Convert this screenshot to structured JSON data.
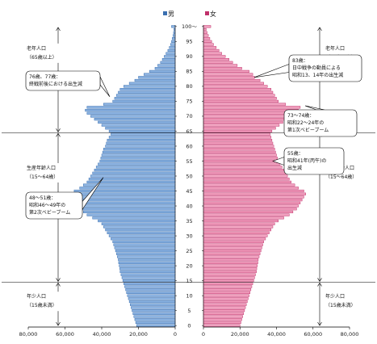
{
  "chart_data": {
    "type": "bar",
    "orientation": "horizontal",
    "layout": "population-pyramid",
    "legend": {
      "male": "男",
      "female": "女",
      "placement": "top-center"
    },
    "colors": {
      "male": "#8db4e2",
      "male_edge": "#3a6fb0",
      "female": "#f2a2c0",
      "female_edge": "#c0306a",
      "divider": "#333333"
    },
    "age_ticks": [
      "0",
      "5",
      "10",
      "15",
      "20",
      "25",
      "30",
      "35",
      "40",
      "45",
      "50",
      "55",
      "60",
      "65",
      "70",
      "75",
      "80",
      "85",
      "90",
      "95",
      "100〜"
    ],
    "x_ticks_male": [
      "80,000",
      "60,000",
      "40,000",
      "20,000",
      "0"
    ],
    "x_ticks_female": [
      "0",
      "20,000",
      "40,000",
      "60,000",
      "80,000"
    ],
    "xlim": [
      0,
      80000
    ],
    "ages": [
      0,
      1,
      2,
      3,
      4,
      5,
      6,
      7,
      8,
      9,
      10,
      11,
      12,
      13,
      14,
      15,
      16,
      17,
      18,
      19,
      20,
      21,
      22,
      23,
      24,
      25,
      26,
      27,
      28,
      29,
      30,
      31,
      32,
      33,
      34,
      35,
      36,
      37,
      38,
      39,
      40,
      41,
      42,
      43,
      44,
      45,
      46,
      47,
      48,
      49,
      50,
      51,
      52,
      53,
      54,
      55,
      56,
      57,
      58,
      59,
      60,
      61,
      62,
      63,
      64,
      65,
      66,
      67,
      68,
      69,
      70,
      71,
      72,
      73,
      74,
      75,
      76,
      77,
      78,
      79,
      80,
      81,
      82,
      83,
      84,
      85,
      86,
      87,
      88,
      89,
      90,
      91,
      92,
      93,
      94,
      95,
      96,
      97,
      98,
      99,
      100
    ],
    "series": [
      {
        "name": "男",
        "values": [
          21000,
          21500,
          22000,
          22500,
          23000,
          23500,
          24000,
          24500,
          25000,
          25500,
          26000,
          26500,
          27000,
          27500,
          28000,
          28500,
          29000,
          29500,
          30000,
          30200,
          30500,
          30800,
          31000,
          31500,
          32000,
          32500,
          33000,
          33500,
          34000,
          35000,
          36000,
          37000,
          38000,
          39000,
          40000,
          42000,
          45000,
          48000,
          50000,
          52000,
          53000,
          54000,
          55000,
          56000,
          56500,
          55000,
          52000,
          50000,
          48000,
          47000,
          46000,
          45000,
          44000,
          43000,
          42000,
          41000,
          40500,
          40000,
          39500,
          39000,
          38000,
          37500,
          37000,
          36000,
          35000,
          36000,
          38000,
          40000,
          42000,
          44000,
          46000,
          48000,
          49000,
          48000,
          39000,
          34000,
          33000,
          32000,
          31000,
          30000,
          28000,
          25000,
          22000,
          20000,
          17000,
          14000,
          11000,
          9500,
          8000,
          7000,
          6000,
          5000,
          4000,
          3200,
          2500,
          2000,
          1600,
          1200,
          900,
          700,
          2000
        ]
      },
      {
        "name": "女",
        "values": [
          20000,
          20500,
          21000,
          21500,
          22000,
          22500,
          23000,
          23500,
          24000,
          24500,
          25000,
          25500,
          26000,
          26500,
          27000,
          27500,
          28000,
          28500,
          29000,
          29200,
          29500,
          29800,
          30000,
          30500,
          31000,
          31500,
          32000,
          32500,
          33000,
          34000,
          35000,
          36000,
          37000,
          38000,
          39000,
          41000,
          44000,
          47000,
          49000,
          51000,
          52000,
          53000,
          54000,
          55000,
          56000,
          55000,
          52000,
          50000,
          48000,
          47000,
          46000,
          45000,
          44000,
          43000,
          42000,
          41000,
          40500,
          40000,
          39500,
          39000,
          38500,
          38000,
          37500,
          37000,
          36500,
          37500,
          39500,
          41500,
          43500,
          45500,
          47500,
          50000,
          52000,
          53000,
          45000,
          41000,
          40000,
          39000,
          38000,
          37000,
          35000,
          33000,
          31000,
          28000,
          27000,
          25000,
          21000,
          18500,
          16000,
          14000,
          12000,
          10000,
          8500,
          7000,
          5500,
          4500,
          3500,
          2700,
          2000,
          1500,
          4000
        ]
      }
    ],
    "band_labels": [
      {
        "side": "male",
        "band": "elderly",
        "lines": [
          "老年人口",
          "（65歳以上）"
        ]
      },
      {
        "side": "female",
        "band": "elderly",
        "lines": [
          "老年人口",
          "（65歳以上）"
        ]
      },
      {
        "side": "male",
        "band": "working",
        "lines": [
          "生産年齢人口",
          "（15～64歳）"
        ]
      },
      {
        "side": "female",
        "band": "working",
        "lines": [
          "生産年齢人口",
          "（15～64歳）"
        ]
      },
      {
        "side": "male",
        "band": "young",
        "lines": [
          "年少人口",
          "（15歳未満）"
        ]
      },
      {
        "side": "female",
        "band": "young",
        "lines": [
          "年少人口",
          "（15歳未満）"
        ]
      }
    ],
    "annotations": [
      {
        "side": "male",
        "lines": [
          "76歳、77歳：",
          "終戦前後における出生減"
        ]
      },
      {
        "side": "male",
        "lines": [
          "48～51歳：",
          "昭和46～49年の",
          "第2次ベビーブーム"
        ]
      },
      {
        "side": "female",
        "lines": [
          "83歳：",
          "日中戦争の動員による",
          "昭和13、14年の出生減"
        ]
      },
      {
        "side": "female",
        "lines": [
          "73～74歳：",
          "昭和22～24年の",
          "第1次ベビーブーム"
        ]
      },
      {
        "side": "female",
        "lines": [
          "55歳：",
          "昭和41年(丙午)の",
          "出生減"
        ]
      }
    ]
  }
}
